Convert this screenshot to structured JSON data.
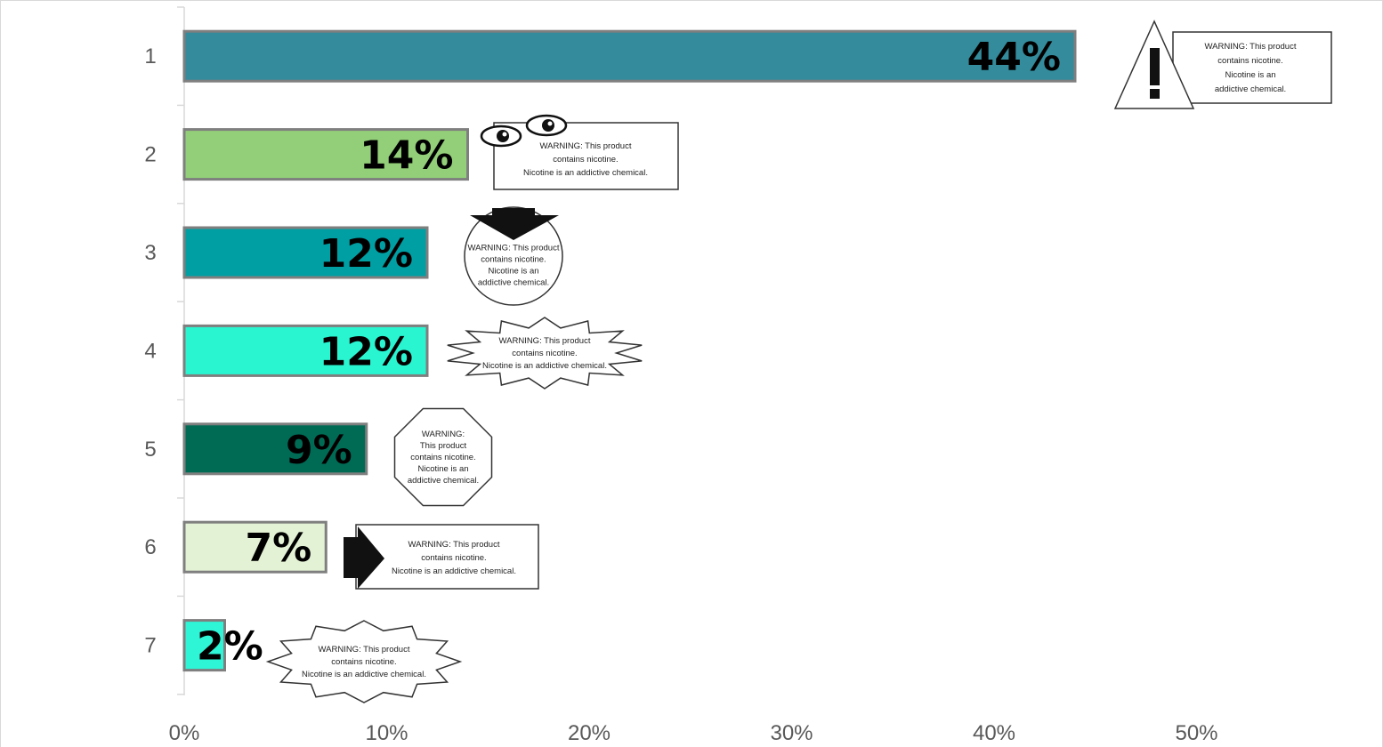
{
  "chart_data": {
    "type": "bar",
    "orientation": "horizontal",
    "categories": [
      "1",
      "2",
      "3",
      "4",
      "5",
      "6",
      "7"
    ],
    "values": [
      44,
      14,
      12,
      12,
      9,
      7,
      2
    ],
    "data_labels": [
      "44%",
      "14%",
      "12%",
      "12%",
      "9%",
      "7%",
      "2%"
    ],
    "xlim": [
      0,
      55
    ],
    "x_ticks": [
      0,
      10,
      20,
      30,
      40,
      50
    ],
    "x_tick_labels": [
      "0%",
      "10%",
      "20%",
      "30%",
      "40%",
      "50%"
    ],
    "bar_colors": [
      "#338b9b",
      "#92cf78",
      "#009fa3",
      "#2af5d1",
      "#006b55",
      "#e3f1d4",
      "#2ef5d6"
    ],
    "gridlines": false,
    "legend": "none",
    "title": "",
    "xlabel": "",
    "ylabel": ""
  },
  "warning_labels": [
    {
      "icon": "warning-triangle-icon",
      "lines": [
        "WARNING: This product",
        "contains nicotine.",
        "Nicotine is an",
        "addictive chemical."
      ]
    },
    {
      "icon": "eyes-icon",
      "lines": [
        "WARNING: This product",
        "contains nicotine.",
        "Nicotine is an addictive chemical."
      ]
    },
    {
      "icon": "down-arrow-icon",
      "lines": [
        "WARNING: This product",
        "contains nicotine.",
        "Nicotine is an",
        "addictive chemical."
      ]
    },
    {
      "icon": "starburst-icon",
      "lines": [
        "WARNING: This product",
        "contains nicotine.",
        "Nicotine is an addictive chemical."
      ]
    },
    {
      "icon": "octagon-icon",
      "lines": [
        "WARNING:",
        "This product",
        "contains nicotine.",
        "Nicotine is an",
        "addictive chemical."
      ]
    },
    {
      "icon": "right-arrow-icon",
      "lines": [
        "WARNING: This product",
        "contains nicotine.",
        "Nicotine is an addictive chemical."
      ]
    },
    {
      "icon": "cloud-burst-icon",
      "lines": [
        "WARNING: This product",
        "contains nicotine.",
        "Nicotine is an addictive chemical."
      ]
    }
  ]
}
